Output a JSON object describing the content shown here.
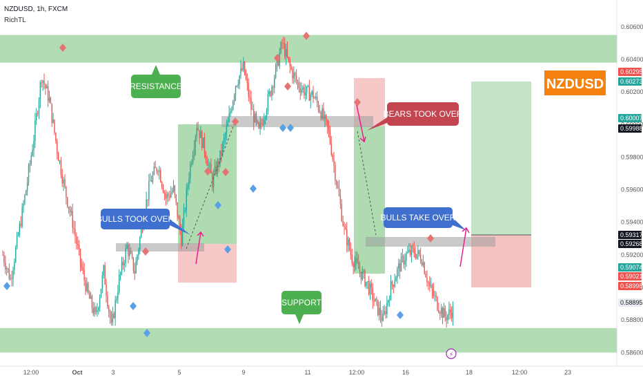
{
  "header": {
    "title": "NZDUSD, 1h, FXCM",
    "indicator": "RichTL"
  },
  "badge": {
    "text": "NZDUSD",
    "bg": "#f5810e",
    "fg": "#ffffff"
  },
  "colors": {
    "up": "#26a69a",
    "down": "#ef5350",
    "zone": "#a5d6a7",
    "green_callout": "#4caf50",
    "blue_callout": "#3f6fcf",
    "red_callout": "#c3454f",
    "pivot_high": "#e57373",
    "pivot_low": "#5aa0e6",
    "arrow": "#e91e8c"
  },
  "chart_data": {
    "type": "candlestick",
    "symbol": "NZDUSD",
    "interval": "1h",
    "broker": "FXCM",
    "ylim": [
      0.5858,
      0.6068
    ],
    "y_ticks": [
      "0.60600",
      "0.60400",
      "0.60200",
      "0.60000",
      "0.59800",
      "0.59600",
      "0.59400",
      "0.59200",
      "0.59000",
      "0.58800",
      "0.58600"
    ],
    "x_ticks": [
      "12:00",
      "Oct",
      "3",
      "5",
      "9",
      "11",
      "12:00",
      "16",
      "18",
      "12:00",
      "23"
    ],
    "close_path": [
      [
        0,
        0.592
      ],
      [
        6,
        0.5905
      ],
      [
        12,
        0.5932
      ],
      [
        18,
        0.596
      ],
      [
        24,
        0.5992
      ],
      [
        30,
        0.603
      ],
      [
        36,
        0.6015
      ],
      [
        42,
        0.5985
      ],
      [
        48,
        0.596
      ],
      [
        54,
        0.594
      ],
      [
        60,
        0.5915
      ],
      [
        66,
        0.5895
      ],
      [
        72,
        0.5882
      ],
      [
        78,
        0.591
      ],
      [
        84,
        0.5875
      ],
      [
        90,
        0.5905
      ],
      [
        96,
        0.5925
      ],
      [
        102,
        0.591
      ],
      [
        108,
        0.594
      ],
      [
        114,
        0.5965
      ],
      [
        120,
        0.5975
      ],
      [
        126,
        0.5955
      ],
      [
        132,
        0.596
      ],
      [
        138,
        0.593
      ],
      [
        144,
        0.597
      ],
      [
        150,
        0.6
      ],
      [
        156,
        0.5985
      ],
      [
        162,
        0.5965
      ],
      [
        168,
        0.598
      ],
      [
        174,
        0.6
      ],
      [
        180,
        0.6025
      ],
      [
        186,
        0.6035
      ],
      [
        192,
        0.601
      ],
      [
        198,
        0.5995
      ],
      [
        204,
        0.6012
      ],
      [
        210,
        0.603
      ],
      [
        216,
        0.605
      ],
      [
        222,
        0.6035
      ],
      [
        228,
        0.6025
      ],
      [
        234,
        0.602
      ],
      [
        240,
        0.6018
      ],
      [
        246,
        0.6008
      ],
      [
        252,
        0.5995
      ],
      [
        258,
        0.5965
      ],
      [
        264,
        0.5935
      ],
      [
        270,
        0.5918
      ],
      [
        276,
        0.591
      ],
      [
        282,
        0.5902
      ],
      [
        288,
        0.589
      ],
      [
        294,
        0.588
      ],
      [
        300,
        0.59
      ],
      [
        306,
        0.5912
      ],
      [
        312,
        0.592
      ],
      [
        318,
        0.5922
      ],
      [
        324,
        0.5918
      ],
      [
        330,
        0.59
      ],
      [
        336,
        0.589
      ],
      [
        342,
        0.5882
      ],
      [
        348,
        0.5886
      ]
    ],
    "price_labels": [
      {
        "value": "0.60295",
        "bg": "#ef5350",
        "fg": "#ffffff"
      },
      {
        "value": "0.60273",
        "bg": "#26a69a",
        "fg": "#ffffff"
      },
      {
        "value": "0.60007",
        "bg": "#26a69a",
        "fg": "#ffffff"
      },
      {
        "value": "0.59988",
        "bg": "#131722",
        "fg": "#ffffff"
      },
      {
        "value": "0.59317",
        "bg": "#131722",
        "fg": "#ffffff"
      },
      {
        "value": "0.59268",
        "bg": "#131722",
        "fg": "#ffffff"
      },
      {
        "value": "0.59074",
        "bg": "#26a69a",
        "fg": "#ffffff"
      },
      {
        "value": "0.59021",
        "bg": "#ef5350",
        "fg": "#ffffff"
      },
      {
        "value": "0.58998",
        "bg": "#ef5350",
        "fg": "#ffffff"
      },
      {
        "value": "0.58895",
        "bg": "#e9ebee",
        "fg": "#131722"
      }
    ],
    "zones": [
      {
        "name": "resistance-zone",
        "from": 0.6038,
        "to": 0.6055
      },
      {
        "name": "support-zone",
        "from": 0.586,
        "to": 0.5875
      }
    ],
    "annotations": [
      "RESISTANCE",
      "SUPPORT",
      "BULLS TOOK OVER",
      "BEARS TOOK OVER",
      "BULLS TAKE OVER"
    ]
  }
}
